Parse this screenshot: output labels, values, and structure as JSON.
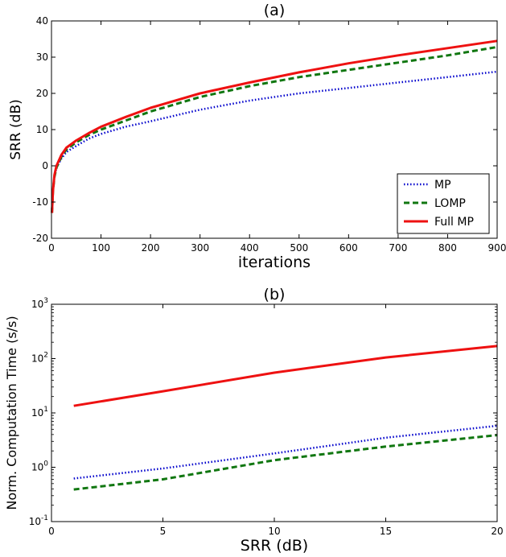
{
  "chart_data": [
    {
      "type": "line",
      "title": "(a)",
      "xlabel": "iterations",
      "ylabel": "SRR (dB)",
      "xlim": [
        0,
        900
      ],
      "ylim": [
        -20,
        40
      ],
      "xticks": [
        0,
        100,
        200,
        300,
        400,
        500,
        600,
        700,
        800,
        900
      ],
      "yticks": [
        -20,
        -10,
        0,
        10,
        20,
        30,
        40
      ],
      "grid": false,
      "legend_position": "lower-right",
      "series": [
        {
          "name": "MP",
          "color": "#0000cc",
          "style": "dotted",
          "x": [
            1,
            3,
            6,
            10,
            20,
            30,
            50,
            75,
            100,
            150,
            200,
            300,
            400,
            500,
            600,
            700,
            800,
            900
          ],
          "y": [
            -12,
            -7,
            -3,
            -0.5,
            2,
            3.8,
            5.5,
            7.5,
            8.8,
            10.8,
            12.3,
            15.5,
            18,
            20,
            21.5,
            23,
            24.5,
            26
          ]
        },
        {
          "name": "LOMP",
          "color": "#117711",
          "style": "dashed",
          "x": [
            1,
            3,
            6,
            10,
            20,
            30,
            50,
            75,
            100,
            150,
            200,
            300,
            400,
            500,
            600,
            700,
            800,
            900
          ],
          "y": [
            -13,
            -7,
            -3,
            -0.5,
            2.5,
            4.5,
            6.5,
            8.5,
            10,
            12.5,
            15,
            19,
            22,
            24.5,
            26.5,
            28.5,
            30.5,
            32.8
          ]
        },
        {
          "name": "Full MP",
          "color": "#ee1111",
          "style": "solid",
          "x": [
            1,
            3,
            6,
            10,
            20,
            30,
            50,
            75,
            100,
            150,
            200,
            300,
            400,
            500,
            600,
            700,
            800,
            900
          ],
          "y": [
            -13,
            -7,
            -2.5,
            0,
            3,
            5,
            7,
            9,
            10.8,
            13.5,
            16,
            20,
            23,
            25.8,
            28.3,
            30.5,
            32.5,
            34.5
          ]
        }
      ]
    },
    {
      "type": "line",
      "title": "(b)",
      "xlabel": "SRR (dB)",
      "ylabel": "Norm. Computation Time (s/s)",
      "xlim": [
        0,
        20
      ],
      "yscale": "log",
      "ylim": [
        0.1,
        1000
      ],
      "xticks": [
        0,
        5,
        10,
        15,
        20
      ],
      "yticks": [
        {
          "base": "10",
          "exp": "-1",
          "value": 0.1
        },
        {
          "base": "10",
          "exp": "0",
          "value": 1
        },
        {
          "base": "10",
          "exp": "1",
          "value": 10
        },
        {
          "base": "10",
          "exp": "2",
          "value": 100
        },
        {
          "base": "10",
          "exp": "3",
          "value": 1000
        }
      ],
      "grid": false,
      "series": [
        {
          "name": "MP",
          "color": "#0000cc",
          "style": "dotted",
          "x": [
            1,
            5,
            10,
            15,
            20
          ],
          "y": [
            0.62,
            0.95,
            1.8,
            3.5,
            5.8
          ]
        },
        {
          "name": "LOMP",
          "color": "#117711",
          "style": "dashed",
          "x": [
            1,
            5,
            10,
            15,
            20
          ],
          "y": [
            0.39,
            0.6,
            1.35,
            2.4,
            3.9
          ]
        },
        {
          "name": "Full MP",
          "color": "#ee1111",
          "style": "solid",
          "x": [
            1,
            5,
            10,
            15,
            20
          ],
          "y": [
            13.5,
            25,
            55,
            105,
            170
          ]
        }
      ]
    }
  ]
}
